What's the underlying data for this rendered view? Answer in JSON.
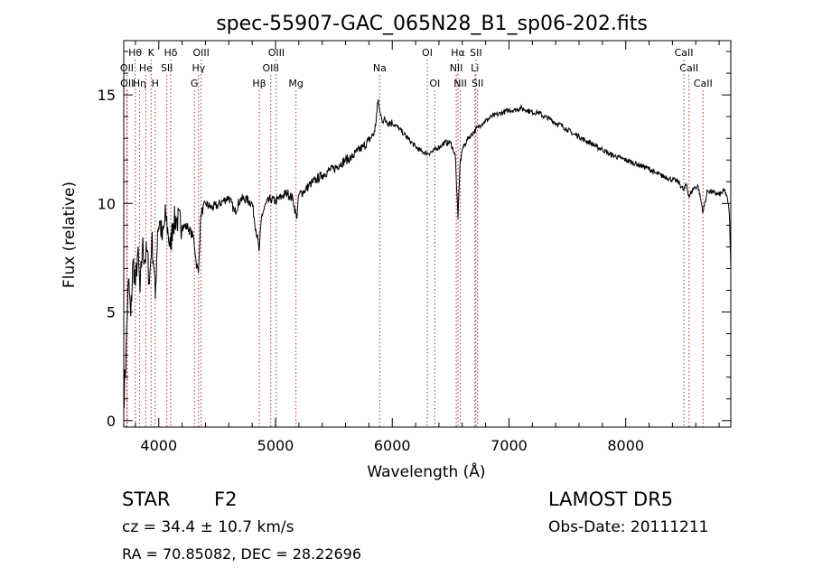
{
  "chart_data": {
    "type": "line",
    "title": "spec-55907-GAC_065N28_B1_sp06-202.fits",
    "xlabel": "Wavelength (Å)",
    "ylabel": "Flux (relative)",
    "xlim": [
      3700,
      8900
    ],
    "ylim": [
      -0.3,
      17.5
    ],
    "xticks": [
      4000,
      5000,
      6000,
      7000,
      8000
    ],
    "yticks": [
      0,
      5,
      10,
      15
    ],
    "grid": false,
    "series": [
      {
        "x": [
          3700,
          3720,
          3740,
          3760,
          3780,
          3800,
          3820,
          3840,
          3860,
          3880,
          3900,
          3920,
          3940,
          3960,
          3970,
          3990,
          4010,
          4030,
          4060,
          4080,
          4101,
          4120,
          4150,
          4200,
          4250,
          4300,
          4320,
          4340,
          4360,
          4400,
          4450,
          4500,
          4550,
          4600,
          4650,
          4700,
          4750,
          4800,
          4861,
          4880,
          4920,
          4960,
          5000,
          5050,
          5100,
          5150,
          5180,
          5200,
          5250,
          5300,
          5350,
          5400,
          5450,
          5500,
          5550,
          5600,
          5650,
          5700,
          5750,
          5800,
          5850,
          5880,
          5893,
          5910,
          5950,
          6000,
          6050,
          6100,
          6150,
          6200,
          6250,
          6300,
          6350,
          6400,
          6450,
          6500,
          6540,
          6563,
          6580,
          6600,
          6650,
          6700,
          6750,
          6800,
          6850,
          6900,
          6950,
          7000,
          7050,
          7100,
          7150,
          7200,
          7250,
          7300,
          7350,
          7400,
          7450,
          7500,
          7550,
          7600,
          7650,
          7700,
          7750,
          7800,
          7850,
          7900,
          7950,
          8000,
          8050,
          8100,
          8150,
          8200,
          8250,
          8300,
          8350,
          8400,
          8450,
          8498,
          8520,
          8542,
          8580,
          8620,
          8662,
          8700,
          8750,
          8800,
          8850,
          8880,
          8890,
          8900
        ],
        "y": [
          0.8,
          3.2,
          6.5,
          4.8,
          7.4,
          6.2,
          7.8,
          5.9,
          8.1,
          7.4,
          7.8,
          6.3,
          8.4,
          7.0,
          5.6,
          8.8,
          9.2,
          8.3,
          9.5,
          8.6,
          7.9,
          9.1,
          9.3,
          9.0,
          8.9,
          8.4,
          7.3,
          6.8,
          9.5,
          10.0,
          9.8,
          9.9,
          10.1,
          10.3,
          9.6,
          10.2,
          10.2,
          10.0,
          7.8,
          9.4,
          10.0,
          10.2,
          10.1,
          10.3,
          10.5,
          10.2,
          9.3,
          10.4,
          10.6,
          10.9,
          11.1,
          11.3,
          11.5,
          11.6,
          11.8,
          12.0,
          12.1,
          12.4,
          12.6,
          12.9,
          13.3,
          14.8,
          14.2,
          13.9,
          13.8,
          13.7,
          13.5,
          13.2,
          12.9,
          12.6,
          12.4,
          12.3,
          12.4,
          12.6,
          12.8,
          12.8,
          12.2,
          9.3,
          11.8,
          12.5,
          13.0,
          13.3,
          13.6,
          13.8,
          14.0,
          14.1,
          14.2,
          14.3,
          14.3,
          14.4,
          14.3,
          14.2,
          14.2,
          14.0,
          13.9,
          13.7,
          13.6,
          13.4,
          13.2,
          13.1,
          12.9,
          12.8,
          12.6,
          12.5,
          12.3,
          12.2,
          12.1,
          12.0,
          11.9,
          11.8,
          11.7,
          11.6,
          11.4,
          11.3,
          11.2,
          11.1,
          11.0,
          10.6,
          10.9,
          10.3,
          10.7,
          10.8,
          9.6,
          10.6,
          10.5,
          10.4,
          10.6,
          10.0,
          9.2,
          7.0
        ]
      }
    ],
    "line_markers": [
      {
        "label": "Hθ",
        "wavelength": 3798,
        "row": 0
      },
      {
        "label": "OII",
        "wavelength": 3727,
        "row": 1
      },
      {
        "label": "OII",
        "wavelength": 3729,
        "row": 2
      },
      {
        "label": "He",
        "wavelength": 3889,
        "row": 1
      },
      {
        "label": "Hη",
        "wavelength": 3835,
        "row": 2
      },
      {
        "label": "K",
        "wavelength": 3934,
        "row": 0
      },
      {
        "label": "H",
        "wavelength": 3969,
        "row": 2
      },
      {
        "label": "Hδ",
        "wavelength": 4102,
        "row": 0
      },
      {
        "label": "SII",
        "wavelength": 4069,
        "row": 1
      },
      {
        "label": "OIII",
        "wavelength": 4363,
        "row": 0
      },
      {
        "label": "Hγ",
        "wavelength": 4341,
        "row": 1
      },
      {
        "label": "G",
        "wavelength": 4305,
        "row": 2
      },
      {
        "label": "OIII",
        "wavelength": 5007,
        "row": 0
      },
      {
        "label": "OIII",
        "wavelength": 4959,
        "row": 1
      },
      {
        "label": "Hβ",
        "wavelength": 4861,
        "row": 2
      },
      {
        "label": "Mg",
        "wavelength": 5175,
        "row": 2
      },
      {
        "label": "Na",
        "wavelength": 5893,
        "row": 1
      },
      {
        "label": "OI",
        "wavelength": 6300,
        "row": 0
      },
      {
        "label": "OI",
        "wavelength": 6364,
        "row": 2
      },
      {
        "label": "Hα",
        "wavelength": 6563,
        "row": 0
      },
      {
        "label": "NII",
        "wavelength": 6548,
        "row": 1
      },
      {
        "label": "NII",
        "wavelength": 6583,
        "row": 2
      },
      {
        "label": "SII",
        "wavelength": 6717,
        "row": 0
      },
      {
        "label": "Li",
        "wavelength": 6708,
        "row": 1
      },
      {
        "label": "SII",
        "wavelength": 6731,
        "row": 2
      },
      {
        "label": "CaII",
        "wavelength": 8498,
        "row": 0
      },
      {
        "label": "CaII",
        "wavelength": 8542,
        "row": 1
      },
      {
        "label": "CaII",
        "wavelength": 8662,
        "row": 2
      }
    ]
  },
  "info": {
    "object_class": "STAR",
    "subclass": "F2",
    "survey": "LAMOST DR5",
    "redshift": "cz = 34.4 ± 10.7 km/s",
    "obs_date": "Obs-Date: 20111211",
    "coords": "RA =  70.85082, DEC =  28.22696"
  },
  "colors": {
    "spectrum": "#000000",
    "marker_lines": "#b03030",
    "axes": "#000000"
  }
}
